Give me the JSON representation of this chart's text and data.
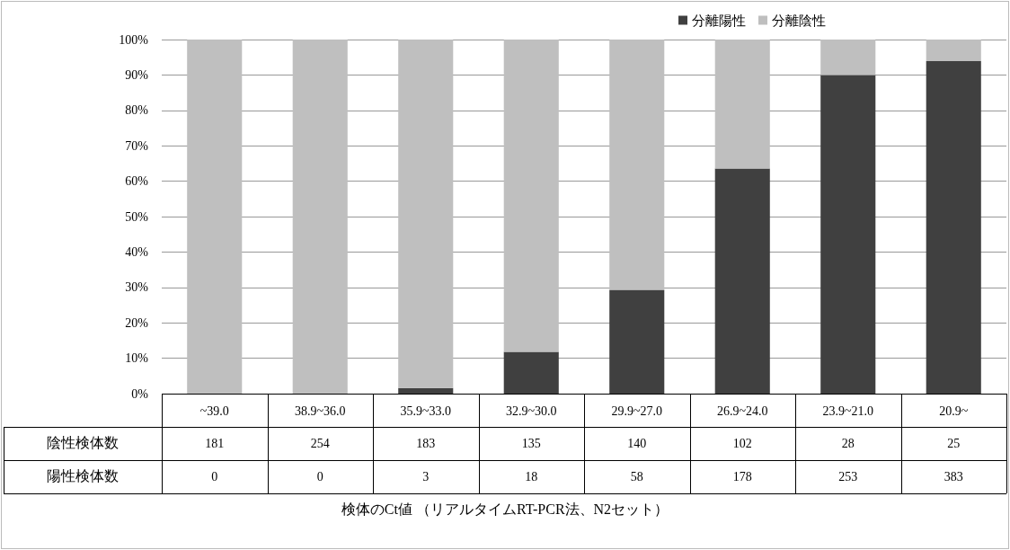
{
  "chart_data": {
    "type": "bar",
    "stacked": true,
    "categories": [
      "~39.0",
      "38.9~36.0",
      "35.9~33.0",
      "32.9~30.0",
      "29.9~27.0",
      "26.9~24.0",
      "23.9~21.0",
      "20.9~"
    ],
    "series": [
      {
        "name": "分離陽性",
        "color": "#404040",
        "values": [
          0,
          0,
          1.6,
          11.8,
          29.3,
          63.6,
          90.0,
          93.9
        ]
      },
      {
        "name": "分離陰性",
        "color": "#bfbfbf",
        "values": [
          100,
          100,
          98.4,
          88.2,
          70.7,
          36.4,
          10.0,
          6.1
        ]
      }
    ],
    "annotations": [
      "陰性検体数",
      "181",
      "254",
      "183",
      "135",
      "140",
      "102",
      "28",
      "25",
      "陽性検体数",
      "0",
      "0",
      "3",
      "18",
      "58",
      "178",
      "253",
      "383",
      "検体のCt値 （リアルタイムRT-PCR法、N2セット）"
    ],
    "ylim": [
      0,
      100
    ],
    "yticks": [
      {
        "value": 0,
        "label": "0%"
      },
      {
        "value": 10,
        "label": "10%"
      },
      {
        "value": 20,
        "label": "20%"
      },
      {
        "value": 30,
        "label": "30%"
      },
      {
        "value": 40,
        "label": "40%"
      },
      {
        "value": 50,
        "label": "50%"
      },
      {
        "value": 60,
        "label": "60%"
      },
      {
        "value": 70,
        "label": "70%"
      },
      {
        "value": 80,
        "label": "80%"
      },
      {
        "value": 90,
        "label": "90%"
      },
      {
        "value": 100,
        "label": "100%"
      }
    ],
    "grid": "y",
    "legend": "top right"
  }
}
